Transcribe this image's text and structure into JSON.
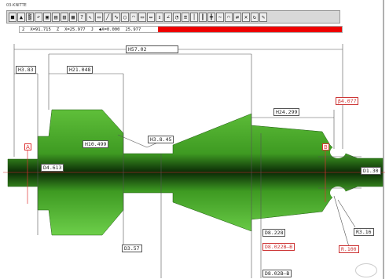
{
  "window": {
    "title": "03-KNITTE"
  },
  "toolbar": {
    "buttons": [
      {
        "name": "new-icon",
        "glyph": "■"
      },
      {
        "name": "open-icon",
        "glyph": "▲"
      },
      {
        "name": "grid-icon",
        "glyph": "▒"
      },
      {
        "name": "undo-icon",
        "glyph": "↶"
      },
      {
        "name": "print-icon",
        "glyph": "▣"
      },
      {
        "name": "view-a-icon",
        "glyph": "▤"
      },
      {
        "name": "view-b-icon",
        "glyph": "▥"
      },
      {
        "name": "view-c-icon",
        "glyph": "▦"
      },
      {
        "name": "help-icon",
        "glyph": "?"
      },
      {
        "name": "pointer-icon",
        "glyph": "↖"
      },
      {
        "name": "select-icon",
        "glyph": "▭"
      },
      {
        "name": "line-icon",
        "glyph": "╱"
      },
      {
        "name": "curve-icon",
        "glyph": "∿"
      },
      {
        "name": "circle-icon",
        "glyph": "○"
      },
      {
        "name": "arc-icon",
        "glyph": "◠"
      },
      {
        "name": "rect-icon",
        "glyph": "▭"
      },
      {
        "name": "dim-h-icon",
        "glyph": "↔"
      },
      {
        "name": "dim-v-icon",
        "glyph": "↕"
      },
      {
        "name": "dim-a-icon",
        "glyph": "∠"
      },
      {
        "name": "dim-r-icon",
        "glyph": "◔"
      },
      {
        "name": "offset-icon",
        "glyph": "≡"
      },
      {
        "name": "mirror-icon",
        "glyph": "│"
      },
      {
        "name": "split-icon",
        "glyph": "┃"
      },
      {
        "name": "join-icon",
        "glyph": "╋"
      },
      {
        "name": "wave-icon",
        "glyph": "∼"
      },
      {
        "name": "bend-icon",
        "glyph": "⌒"
      },
      {
        "name": "flip-icon",
        "glyph": "⇄"
      },
      {
        "name": "cross-icon",
        "glyph": "✕"
      },
      {
        "name": "refresh-icon",
        "glyph": "↻"
      },
      {
        "name": "pencil-icon",
        "glyph": "✎"
      }
    ]
  },
  "coords": {
    "a": "2",
    "b": "X=91.715",
    "c": "Z",
    "d": "X=25.977",
    "e": "J",
    "f": "◆X=0.000",
    "g": "25.977",
    "status": "XYZ B A"
  },
  "drawing": {
    "overall_length": "H57.02",
    "dims": {
      "d1": "H3.83",
      "d2": "H21.048",
      "d3": "H10.499",
      "d4": "H3.8.45",
      "d5": "D4.613",
      "d6": "D3.57",
      "d7": "H24.299",
      "d8": "β4.077",
      "d9": "D1.30",
      "d10": "R3.16",
      "d11": "R.100",
      "d12": "D8.228",
      "d13": "D8.022B–B",
      "d14": "D8.02B–B"
    },
    "section_labels": {
      "a": "A",
      "b": "B"
    }
  },
  "colors": {
    "part_green": "#4a9e2a",
    "part_dark": "#0a2a06",
    "dim_red": "#d33",
    "status_red": "#e00"
  }
}
